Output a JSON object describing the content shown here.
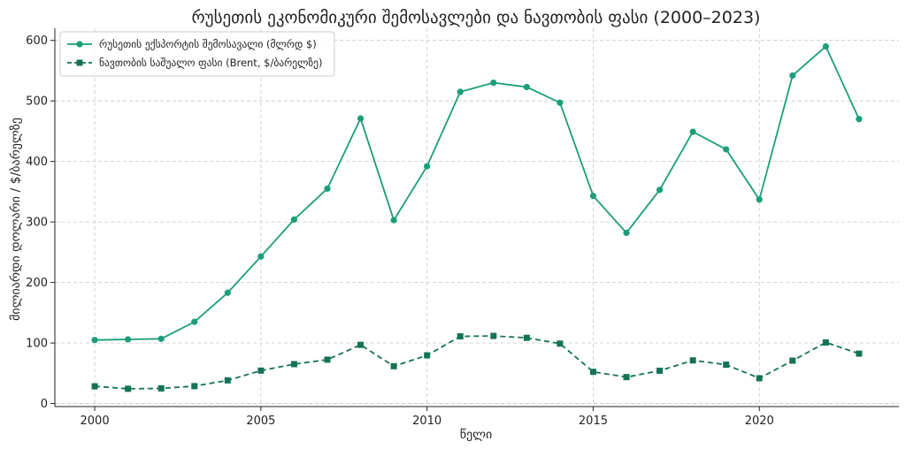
{
  "chart_data": {
    "type": "line",
    "title": "რუსეთის ეკონომიკური შემოსავლები და ნავთობის ფასი (2000–2023)",
    "xlabel": "წელი",
    "ylabel": "მილიარდი დოლარი / $/ბარელზე",
    "xlim": [
      1998.8,
      2024.2
    ],
    "ylim": [
      -5,
      620
    ],
    "xticks": [
      2000,
      2005,
      2010,
      2015,
      2020
    ],
    "yticks": [
      0,
      100,
      200,
      300,
      400,
      500,
      600
    ],
    "grid": true,
    "legend_position": "top-left",
    "x": [
      2000,
      2001,
      2002,
      2003,
      2004,
      2005,
      2006,
      2007,
      2008,
      2009,
      2010,
      2011,
      2012,
      2013,
      2014,
      2015,
      2016,
      2017,
      2018,
      2019,
      2020,
      2021,
      2022,
      2023
    ],
    "series": [
      {
        "name": "რუსეთის ექსპორტის შემოსავალი (მლრდ $)",
        "color": "#1a9e7a",
        "line_style": "solid",
        "marker": "circle",
        "values": [
          105,
          106,
          107,
          135,
          183,
          243,
          304,
          355,
          471,
          303,
          392,
          515,
          530,
          523,
          497,
          343,
          282,
          353,
          449,
          420,
          337,
          542,
          590,
          470
        ]
      },
      {
        "name": "ნავთობის საშუალო ფასი (Brent, $/ბარელზე)",
        "color": "#137356",
        "line_style": "dashed",
        "marker": "square",
        "values": [
          28.5,
          24.4,
          25.0,
          28.8,
          38.3,
          54.4,
          65.1,
          72.5,
          97.0,
          61.7,
          79.6,
          111.0,
          111.7,
          108.6,
          99.0,
          52.4,
          43.7,
          54.2,
          71.3,
          64.2,
          41.8,
          70.9,
          100.9,
          82.5
        ]
      }
    ]
  }
}
